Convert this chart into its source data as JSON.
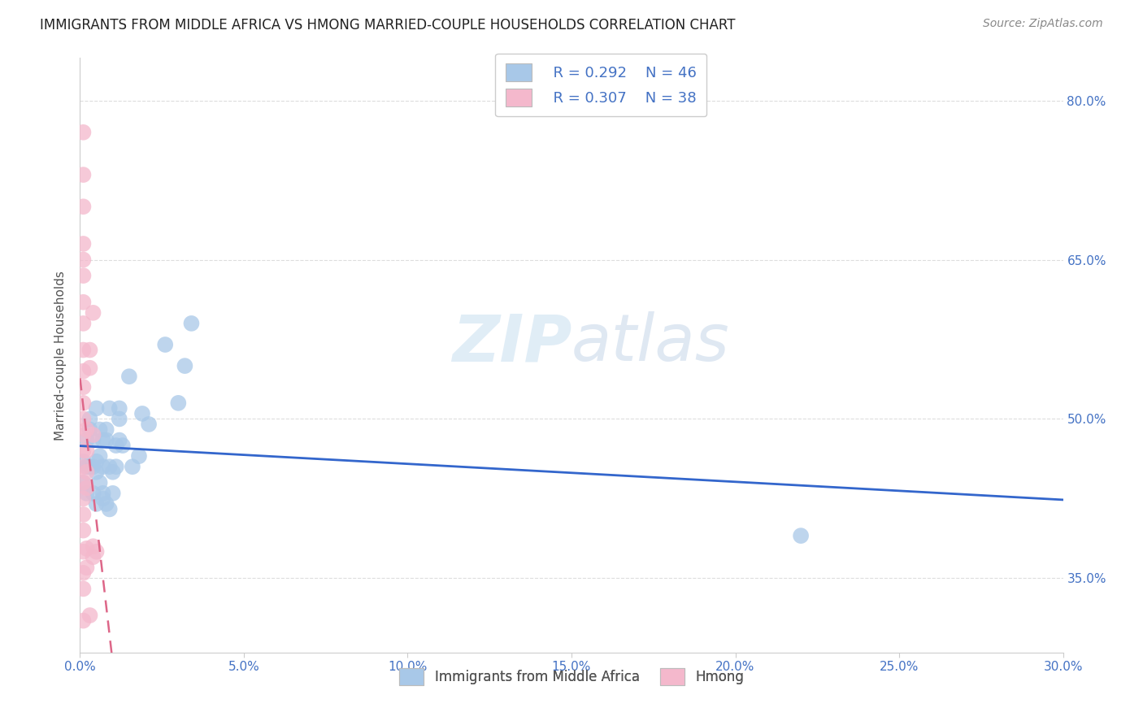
{
  "title": "IMMIGRANTS FROM MIDDLE AFRICA VS HMONG MARRIED-COUPLE HOUSEHOLDS CORRELATION CHART",
  "source": "Source: ZipAtlas.com",
  "ylabel": "Married-couple Households",
  "watermark": "ZIPatlas",
  "legend1_R": "R = 0.292",
  "legend1_N": "N = 46",
  "legend2_R": "R = 0.307",
  "legend2_N": "N = 38",
  "blue_color": "#a8c8e8",
  "pink_color": "#f4b8cc",
  "blue_line_color": "#3366cc",
  "pink_line_color": "#dd6688",
  "pink_line_dash": [
    6,
    4
  ],
  "grid_color": "#dddddd",
  "blue_scatter": [
    [
      0.001,
      0.44
    ],
    [
      0.001,
      0.46
    ],
    [
      0.002,
      0.48
    ],
    [
      0.002,
      0.455
    ],
    [
      0.002,
      0.43
    ],
    [
      0.003,
      0.5
    ],
    [
      0.003,
      0.49
    ],
    [
      0.003,
      0.455
    ],
    [
      0.004,
      0.48
    ],
    [
      0.004,
      0.43
    ],
    [
      0.004,
      0.455
    ],
    [
      0.005,
      0.46
    ],
    [
      0.005,
      0.45
    ],
    [
      0.005,
      0.51
    ],
    [
      0.005,
      0.42
    ],
    [
      0.006,
      0.465
    ],
    [
      0.006,
      0.49
    ],
    [
      0.006,
      0.44
    ],
    [
      0.007,
      0.43
    ],
    [
      0.007,
      0.455
    ],
    [
      0.007,
      0.48
    ],
    [
      0.007,
      0.425
    ],
    [
      0.008,
      0.49
    ],
    [
      0.008,
      0.48
    ],
    [
      0.008,
      0.42
    ],
    [
      0.009,
      0.51
    ],
    [
      0.009,
      0.455
    ],
    [
      0.009,
      0.415
    ],
    [
      0.01,
      0.43
    ],
    [
      0.01,
      0.45
    ],
    [
      0.011,
      0.475
    ],
    [
      0.011,
      0.455
    ],
    [
      0.012,
      0.48
    ],
    [
      0.012,
      0.51
    ],
    [
      0.012,
      0.5
    ],
    [
      0.013,
      0.475
    ],
    [
      0.015,
      0.54
    ],
    [
      0.016,
      0.455
    ],
    [
      0.018,
      0.465
    ],
    [
      0.019,
      0.505
    ],
    [
      0.021,
      0.495
    ],
    [
      0.026,
      0.57
    ],
    [
      0.03,
      0.515
    ],
    [
      0.032,
      0.55
    ],
    [
      0.034,
      0.59
    ],
    [
      0.22,
      0.39
    ]
  ],
  "pink_scatter": [
    [
      0.001,
      0.77
    ],
    [
      0.001,
      0.73
    ],
    [
      0.001,
      0.7
    ],
    [
      0.001,
      0.665
    ],
    [
      0.001,
      0.65
    ],
    [
      0.001,
      0.635
    ],
    [
      0.001,
      0.61
    ],
    [
      0.001,
      0.59
    ],
    [
      0.001,
      0.565
    ],
    [
      0.001,
      0.545
    ],
    [
      0.001,
      0.53
    ],
    [
      0.001,
      0.515
    ],
    [
      0.001,
      0.5
    ],
    [
      0.001,
      0.485
    ],
    [
      0.001,
      0.47
    ],
    [
      0.001,
      0.455
    ],
    [
      0.001,
      0.44
    ],
    [
      0.001,
      0.425
    ],
    [
      0.001,
      0.41
    ],
    [
      0.001,
      0.395
    ],
    [
      0.001,
      0.375
    ],
    [
      0.001,
      0.355
    ],
    [
      0.001,
      0.34
    ],
    [
      0.002,
      0.49
    ],
    [
      0.002,
      0.47
    ],
    [
      0.002,
      0.45
    ],
    [
      0.002,
      0.435
    ],
    [
      0.002,
      0.378
    ],
    [
      0.002,
      0.36
    ],
    [
      0.003,
      0.565
    ],
    [
      0.003,
      0.548
    ],
    [
      0.003,
      0.315
    ],
    [
      0.004,
      0.38
    ],
    [
      0.004,
      0.485
    ],
    [
      0.004,
      0.6
    ],
    [
      0.004,
      0.37
    ],
    [
      0.001,
      0.31
    ],
    [
      0.005,
      0.375
    ]
  ],
  "xlim": [
    0.0,
    0.3
  ],
  "ylim": [
    0.28,
    0.84
  ],
  "ytick_vals": [
    0.35,
    0.5,
    0.65,
    0.8
  ],
  "ytick_labels": [
    "35.0%",
    "50.0%",
    "65.0%",
    "80.0%"
  ],
  "xtick_vals": [
    0.0,
    0.05,
    0.1,
    0.15,
    0.2,
    0.25,
    0.3
  ],
  "xtick_labels": [
    "0.0%",
    "5.0%",
    "10.0%",
    "15.0%",
    "20.0%",
    "25.0%",
    "30.0%"
  ]
}
